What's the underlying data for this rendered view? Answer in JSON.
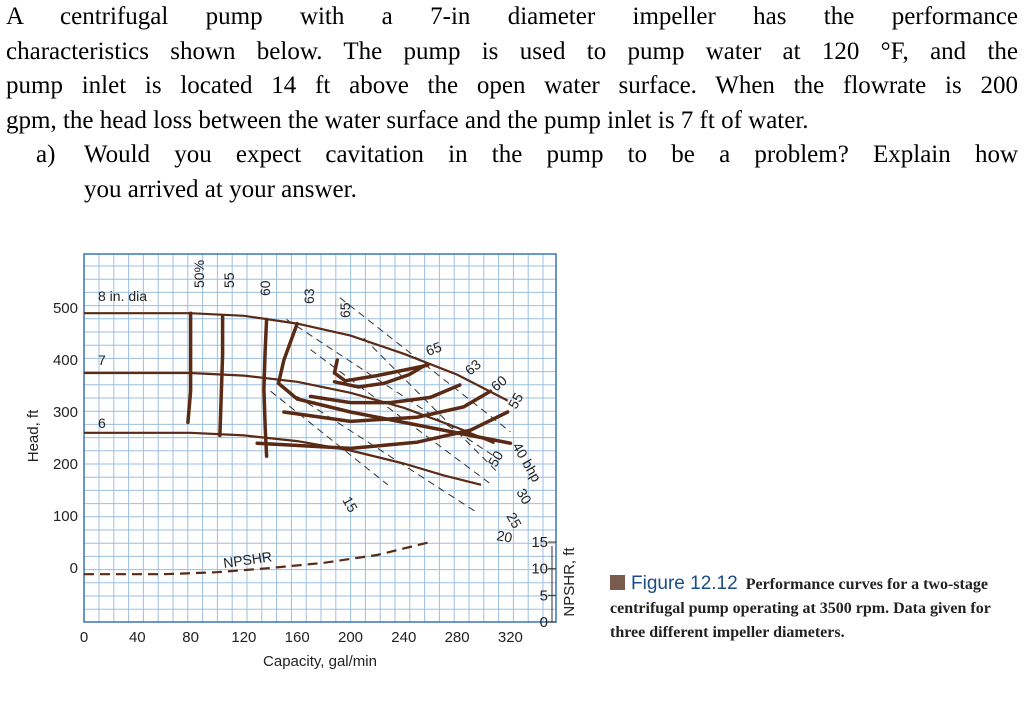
{
  "problem": {
    "lines": [
      "A centrifugal pump with a 7-in diameter impeller has the performance",
      "characteristics shown below. The pump is used to pump water at 120 °F, and the",
      "pump inlet is located 14 ft above the open water surface. When the flowrate is 200",
      "gpm, the head loss between the water surface and the pump inlet is 7 ft of water."
    ],
    "question_label": "a)",
    "question_lines": [
      "Would you expect cavitation in the pump to be a problem? Explain how",
      "you arrived at your answer."
    ]
  },
  "caption": {
    "figure": "Figure 12.12",
    "text": "Performance curves for a two-stage centrifugal pump operating at 3500 rpm. Data given for three different impeller diameters."
  },
  "chart_data": {
    "type": "line",
    "xlabel": "Capacity, gal/min",
    "ylabel": "Head, ft",
    "y2label": "NPSHR, ft",
    "xlim": [
      0,
      350
    ],
    "ylim": [
      -70,
      590
    ],
    "y2lim": [
      0,
      15
    ],
    "xticks": [
      0,
      40,
      80,
      120,
      160,
      200,
      240,
      280,
      320
    ],
    "yticks": [
      0,
      100,
      200,
      300,
      400,
      500
    ],
    "y2ticks": [
      0,
      5,
      10,
      15
    ],
    "grid": true,
    "head_curves": [
      {
        "label": "8 in. dia",
        "points": [
          [
            0,
            490
          ],
          [
            80,
            490
          ],
          [
            120,
            485
          ],
          [
            160,
            470
          ],
          [
            200,
            447
          ],
          [
            240,
            412
          ],
          [
            280,
            372
          ],
          [
            318,
            322
          ]
        ]
      },
      {
        "label": "7",
        "points": [
          [
            0,
            375
          ],
          [
            80,
            375
          ],
          [
            120,
            370
          ],
          [
            160,
            358
          ],
          [
            200,
            337
          ],
          [
            240,
            308
          ],
          [
            280,
            270
          ],
          [
            308,
            240
          ]
        ]
      },
      {
        "label": "6",
        "points": [
          [
            0,
            260
          ],
          [
            80,
            260
          ],
          [
            120,
            255
          ],
          [
            160,
            244
          ],
          [
            200,
            226
          ],
          [
            240,
            201
          ],
          [
            270,
            178
          ],
          [
            298,
            160
          ]
        ]
      }
    ],
    "efficiency_curves": [
      {
        "label": "50%",
        "points": [
          [
            78,
            280
          ],
          [
            80,
            340
          ],
          [
            80,
            420
          ],
          [
            80,
            490
          ]
        ]
      },
      {
        "label": "55",
        "points": [
          [
            102,
            255
          ],
          [
            103,
            330
          ],
          [
            104,
            410
          ],
          [
            104,
            485
          ]
        ]
      },
      {
        "label": "60",
        "points": [
          [
            137,
            215
          ],
          [
            136,
            270
          ],
          [
            135,
            345
          ],
          [
            136,
            420
          ],
          [
            137,
            478
          ]
        ]
      },
      {
        "label": "63",
        "points": [
          [
            320,
            240
          ],
          [
            260,
            270
          ],
          [
            200,
            300
          ],
          [
            160,
            325
          ],
          [
            146,
            355
          ],
          [
            150,
            400
          ],
          [
            160,
            470
          ]
        ]
      },
      {
        "label": "65",
        "points": [
          [
            258,
            390
          ],
          [
            220,
            370
          ],
          [
            196,
            360
          ],
          [
            188,
            375
          ],
          [
            190,
            400
          ]
        ]
      }
    ],
    "efficiency_curves_right": [
      {
        "label": "65",
        "points": [
          [
            188,
            358
          ],
          [
            206,
            348
          ],
          [
            225,
            355
          ],
          [
            244,
            372
          ],
          [
            256,
            390
          ]
        ]
      },
      {
        "label": "63",
        "points": [
          [
            170,
            330
          ],
          [
            200,
            318
          ],
          [
            230,
            318
          ],
          [
            260,
            328
          ],
          [
            282,
            352
          ]
        ]
      },
      {
        "label": "60",
        "points": [
          [
            150,
            300
          ],
          [
            200,
            282
          ],
          [
            250,
            290
          ],
          [
            285,
            310
          ],
          [
            305,
            340
          ]
        ]
      },
      {
        "label": "55",
        "points": [
          [
            130,
            240
          ],
          [
            200,
            230
          ],
          [
            250,
            242
          ],
          [
            290,
            265
          ],
          [
            318,
            300
          ]
        ]
      }
    ],
    "power_lines": [
      {
        "label": "40 bhp",
        "points": [
          [
            192,
            520
          ],
          [
            320,
            262
          ]
        ]
      },
      {
        "label": "50",
        "points": [
          [
            152,
            478
          ],
          [
            312,
            208
          ]
        ]
      },
      {
        "label": "30",
        "points": [
          [
            210,
            442
          ],
          [
            312,
            180
          ]
        ]
      },
      {
        "label": "25",
        "points": [
          [
            170,
            420
          ],
          [
            306,
            160
          ]
        ]
      },
      {
        "label": "20",
        "points": [
          [
            160,
            330
          ],
          [
            296,
            105
          ]
        ]
      },
      {
        "label": "15",
        "points": [
          [
            140,
            340
          ],
          [
            228,
            160
          ]
        ]
      }
    ],
    "npshr_curve": {
      "label": "NPSHR",
      "points": [
        [
          0,
          -12
        ],
        [
          60,
          -12
        ],
        [
          100,
          -8
        ],
        [
          140,
          0
        ],
        [
          180,
          10
        ],
        [
          220,
          25
        ],
        [
          260,
          50
        ]
      ]
    }
  }
}
